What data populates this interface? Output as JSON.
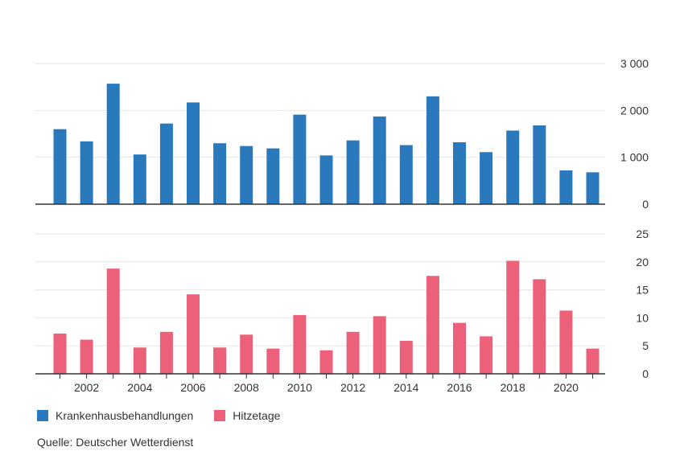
{
  "chart_data": [
    {
      "type": "bar",
      "x": [
        2001,
        2002,
        2003,
        2004,
        2005,
        2006,
        2007,
        2008,
        2009,
        2010,
        2011,
        2012,
        2013,
        2014,
        2015,
        2016,
        2017,
        2018,
        2019,
        2020,
        2021
      ],
      "series": [
        {
          "name": "Krankenhausbehandlungen",
          "color": "#2a79bd",
          "values": [
            1600,
            1340,
            2570,
            1060,
            1720,
            2170,
            1300,
            1240,
            1190,
            1910,
            1040,
            1360,
            1870,
            1260,
            2300,
            1320,
            1110,
            1570,
            1680,
            720,
            680
          ]
        }
      ],
      "ylim": [
        0,
        3000
      ],
      "yticks": [
        0,
        1000,
        2000,
        3000
      ],
      "ytick_labels": [
        "0",
        "1 000",
        "2 000",
        "3 000"
      ],
      "grid": true
    },
    {
      "type": "bar",
      "x": [
        2001,
        2002,
        2003,
        2004,
        2005,
        2006,
        2007,
        2008,
        2009,
        2010,
        2011,
        2012,
        2013,
        2014,
        2015,
        2016,
        2017,
        2018,
        2019,
        2020,
        2021
      ],
      "series": [
        {
          "name": "Hitzetage",
          "color": "#ec6079",
          "values": [
            7.2,
            6.1,
            18.8,
            4.7,
            7.5,
            14.2,
            4.7,
            7.0,
            4.5,
            10.5,
            4.2,
            7.5,
            10.3,
            5.9,
            17.5,
            9.1,
            6.7,
            20.2,
            16.9,
            11.3,
            4.5
          ]
        }
      ],
      "ylim": [
        0,
        25
      ],
      "yticks": [
        0,
        5,
        10,
        15,
        20,
        25
      ],
      "ytick_labels": [
        "0",
        "5",
        "10",
        "15",
        "20",
        "25"
      ],
      "xtick_labels": [
        "2002",
        "2004",
        "2006",
        "2008",
        "2010",
        "2012",
        "2014",
        "2016",
        "2018",
        "2020"
      ],
      "grid": true
    }
  ],
  "legend": {
    "placement": "bottom-left",
    "items": [
      {
        "label": "Krankenhausbehandlungen",
        "color": "#2a79bd"
      },
      {
        "label": "Hitzetage",
        "color": "#ec6079"
      }
    ]
  },
  "source": "Quelle: Deutscher Wetterdienst"
}
